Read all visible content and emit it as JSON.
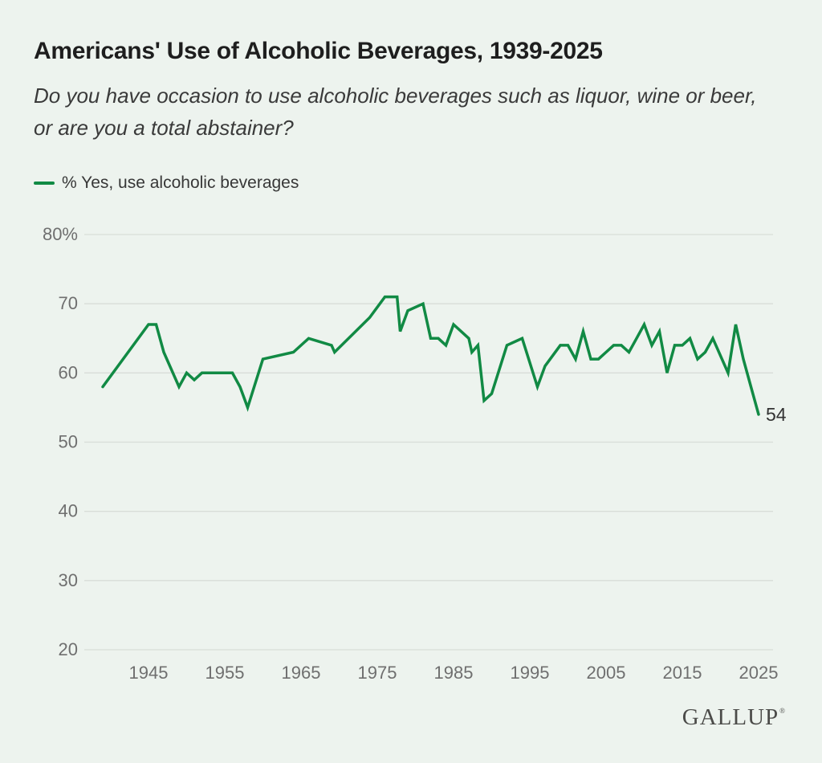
{
  "page": {
    "background_color": "#edf3ee"
  },
  "header": {
    "title": "Americans' Use of Alcoholic Beverages, 1939-2025",
    "subtitle_lines": [
      "Do you have occasion to use alcoholic beverages such as liquor, wine or beer,",
      "or are you a total abstainer?"
    ]
  },
  "legend": {
    "label": "% Yes, use alcoholic beverages",
    "swatch_color": "#118a44",
    "position": "top-left"
  },
  "chart_data": {
    "type": "line",
    "title": "Americans' Use of Alcoholic Beverages, 1939-2025",
    "question": "Do you have occasion to use alcoholic beverages such as liquor, wine or beer, or are you a total abstainer?",
    "xlabel": "",
    "ylabel": "% Yes, use alcoholic beverages",
    "xlim": [
      1939,
      2025
    ],
    "ylim": [
      20,
      80
    ],
    "grid": "horizontal",
    "legend_position": "top-left",
    "gridline_color": "#d8ddd8",
    "axis_label_color": "#6f6f6f",
    "x_ticks": [
      "1945",
      "1955",
      "1965",
      "1975",
      "1985",
      "1995",
      "2005",
      "2015",
      "2025"
    ],
    "y_ticks": [
      {
        "value": 80,
        "label": "80%"
      },
      {
        "value": 70,
        "label": "70"
      },
      {
        "value": 60,
        "label": "60"
      },
      {
        "value": 50,
        "label": "50"
      },
      {
        "value": 40,
        "label": "40"
      },
      {
        "value": 30,
        "label": "30"
      },
      {
        "value": 20,
        "label": "20"
      }
    ],
    "series": [
      {
        "name": "% Yes, use alcoholic beverages",
        "color": "#118a44",
        "points": [
          [
            1939,
            58
          ],
          [
            1945,
            67
          ],
          [
            1946,
            67
          ],
          [
            1947,
            63
          ],
          [
            1949,
            58
          ],
          [
            1950,
            60
          ],
          [
            1951,
            59
          ],
          [
            1952,
            60
          ],
          [
            1956,
            60
          ],
          [
            1957,
            58
          ],
          [
            1958,
            55
          ],
          [
            1960,
            62
          ],
          [
            1964,
            63
          ],
          [
            1966,
            65
          ],
          [
            1969,
            64
          ],
          [
            1969.4,
            63
          ],
          [
            1974,
            68
          ],
          [
            1976,
            71
          ],
          [
            1977.6,
            71
          ],
          [
            1978,
            66
          ],
          [
            1979,
            69
          ],
          [
            1981,
            70
          ],
          [
            1982,
            65
          ],
          [
            1983,
            65
          ],
          [
            1984,
            64
          ],
          [
            1985,
            67
          ],
          [
            1987,
            65
          ],
          [
            1987.4,
            63
          ],
          [
            1988.2,
            64
          ],
          [
            1989,
            56
          ],
          [
            1990,
            57
          ],
          [
            1992,
            64
          ],
          [
            1994,
            65
          ],
          [
            1996,
            58
          ],
          [
            1997,
            61
          ],
          [
            1999,
            64
          ],
          [
            2000,
            64
          ],
          [
            2001,
            62
          ],
          [
            2002,
            66
          ],
          [
            2003,
            62
          ],
          [
            2004,
            62
          ],
          [
            2005,
            63
          ],
          [
            2006,
            64
          ],
          [
            2007,
            64
          ],
          [
            2008,
            63
          ],
          [
            2009,
            65
          ],
          [
            2010,
            67
          ],
          [
            2011,
            64
          ],
          [
            2012,
            66
          ],
          [
            2013,
            60
          ],
          [
            2014,
            64
          ],
          [
            2015,
            64
          ],
          [
            2016,
            65
          ],
          [
            2017,
            62
          ],
          [
            2018,
            63
          ],
          [
            2019,
            65
          ],
          [
            2021,
            60
          ],
          [
            2022,
            67
          ],
          [
            2023,
            62
          ],
          [
            2024,
            58
          ],
          [
            2025,
            54
          ]
        ]
      }
    ],
    "end_label": {
      "text": "54",
      "year": 2025,
      "value": 54,
      "color": "#333333"
    }
  },
  "footer": {
    "brand": "GALLUP",
    "trademark_mark": "®"
  }
}
